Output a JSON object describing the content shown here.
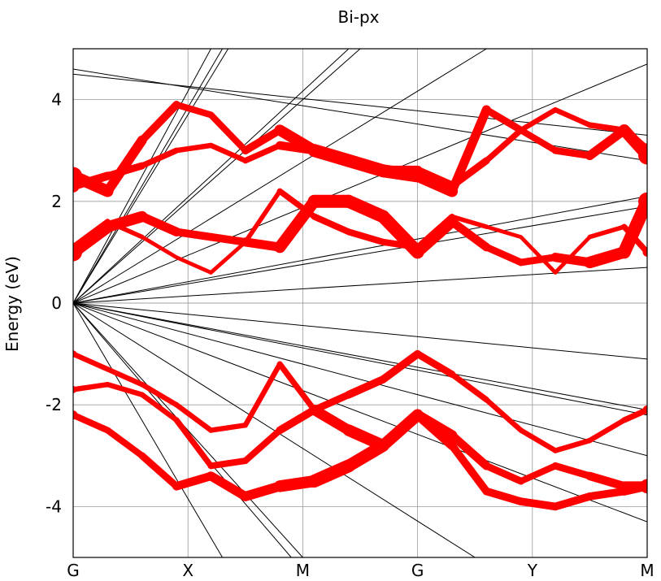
{
  "chart_data": {
    "type": "line",
    "title": "Bi-px",
    "xlabel": "",
    "ylabel": "Energy (eV)",
    "ylim": [
      -5,
      5
    ],
    "grid": true,
    "x_ticks": [
      "G",
      "X",
      "M",
      "G",
      "Y",
      "M"
    ],
    "x_positions": [
      0,
      1,
      2,
      3,
      4,
      5
    ],
    "y_ticks": [
      -4,
      -2,
      0,
      2,
      4
    ],
    "colors": {
      "projected": "#ff0000",
      "band": "#000000"
    },
    "series": [
      {
        "x": [
          0,
          0.3,
          0.6,
          0.9,
          1.2,
          1.5,
          1.8,
          2.1,
          2.4,
          2.7,
          3.0,
          3.3,
          3.6,
          3.9,
          4.2,
          4.5,
          4.8,
          5.0
        ],
        "y": [
          1.0,
          1.5,
          1.7,
          1.4,
          1.3,
          1.2,
          1.1,
          2.0,
          2.0,
          1.7,
          1.0,
          1.6,
          1.1,
          0.8,
          0.9,
          0.8,
          1.0,
          2.0
        ],
        "weight": [
          1,
          0.9,
          0.8,
          0.6,
          0.6,
          0.6,
          0.8,
          1,
          1,
          1,
          1,
          0.7,
          0.6,
          0.5,
          0.6,
          0.8,
          1,
          1
        ]
      },
      {
        "x": [
          0,
          0.3,
          0.6,
          0.9,
          1.2,
          1.5,
          1.8,
          2.1,
          2.4,
          2.7,
          3.0,
          3.3,
          3.6,
          3.9,
          4.2,
          4.5,
          4.8,
          5.0
        ],
        "y": [
          2.5,
          2.2,
          3.2,
          3.9,
          3.7,
          3.0,
          3.4,
          3.0,
          2.8,
          2.6,
          2.5,
          2.2,
          3.8,
          3.4,
          3.0,
          2.9,
          3.4,
          2.9
        ],
        "weight": [
          1,
          0.8,
          0.7,
          0.5,
          0.5,
          0.5,
          0.7,
          1,
          1,
          1,
          1,
          0.8,
          0.6,
          0.5,
          0.5,
          0.6,
          0.8,
          1
        ]
      },
      {
        "x": [
          0,
          0.3,
          0.6,
          0.9,
          1.2,
          1.5,
          1.8,
          2.1,
          2.4,
          2.7,
          3.0,
          3.3,
          3.6,
          3.9,
          4.2,
          4.5,
          4.8,
          5.0
        ],
        "y": [
          2.3,
          2.5,
          2.7,
          3.0,
          3.1,
          2.8,
          3.1,
          3.0,
          2.8,
          2.6,
          2.6,
          2.3,
          2.8,
          3.4,
          3.8,
          3.5,
          3.4,
          3.0
        ],
        "weight": [
          0.7,
          0.6,
          0.5,
          0.4,
          0.4,
          0.4,
          0.5,
          0.8,
          0.8,
          0.8,
          0.8,
          0.6,
          0.5,
          0.4,
          0.4,
          0.4,
          0.5,
          0.8
        ]
      },
      {
        "x": [
          0,
          0.3,
          0.6,
          0.9,
          1.2,
          1.5,
          1.8,
          2.1,
          2.4,
          2.7,
          3.0,
          3.3,
          3.6,
          3.9,
          4.2,
          4.5,
          4.8,
          5.0
        ],
        "y": [
          1.1,
          1.6,
          1.3,
          0.9,
          0.6,
          1.2,
          2.2,
          1.7,
          1.4,
          1.2,
          1.1,
          1.7,
          1.5,
          1.3,
          0.6,
          1.3,
          1.5,
          1.0
        ],
        "weight": [
          0.5,
          0.4,
          0.3,
          0.3,
          0.3,
          0.3,
          0.4,
          0.5,
          0.5,
          0.5,
          0.5,
          0.4,
          0.3,
          0.3,
          0.3,
          0.3,
          0.4,
          0.5
        ]
      },
      {
        "x": [
          0,
          0.3,
          0.6,
          0.9,
          1.2,
          1.5,
          1.8,
          2.1,
          2.4,
          2.7,
          3.0,
          3.3,
          3.6,
          3.9,
          4.2,
          4.5,
          4.8,
          5.0
        ],
        "y": [
          -1.0,
          -1.3,
          -1.6,
          -2.0,
          -2.5,
          -2.4,
          -1.2,
          -2.1,
          -1.8,
          -1.5,
          -1.0,
          -1.4,
          -1.9,
          -2.5,
          -2.9,
          -2.7,
          -2.3,
          -2.1
        ],
        "weight": [
          0.4,
          0.4,
          0.4,
          0.4,
          0.4,
          0.4,
          0.4,
          0.5,
          0.6,
          0.6,
          0.6,
          0.5,
          0.4,
          0.4,
          0.4,
          0.4,
          0.4,
          0.5
        ]
      },
      {
        "x": [
          0,
          0.3,
          0.6,
          0.9,
          1.2,
          1.5,
          1.8,
          2.1,
          2.4,
          2.7,
          3.0,
          3.3,
          3.6,
          3.9,
          4.2,
          4.5,
          4.8,
          5.0
        ],
        "y": [
          -1.7,
          -1.6,
          -1.8,
          -2.3,
          -3.2,
          -3.1,
          -2.5,
          -2.1,
          -2.5,
          -2.8,
          -2.2,
          -2.6,
          -3.2,
          -3.5,
          -3.2,
          -3.4,
          -3.6,
          -3.6
        ],
        "weight": [
          0.4,
          0.4,
          0.4,
          0.4,
          0.5,
          0.5,
          0.5,
          0.7,
          0.9,
          0.9,
          0.9,
          0.7,
          0.6,
          0.5,
          0.5,
          0.6,
          0.7,
          0.8
        ]
      },
      {
        "x": [
          0,
          0.3,
          0.6,
          0.9,
          1.2,
          1.5,
          1.8,
          2.1,
          2.4,
          2.7,
          3.0,
          3.3,
          3.6,
          3.9,
          4.2,
          4.5,
          4.8,
          5.0
        ],
        "y": [
          -2.2,
          -2.5,
          -3.0,
          -3.6,
          -3.4,
          -3.8,
          -3.6,
          -3.5,
          -3.2,
          -2.8,
          -2.2,
          -2.8,
          -3.7,
          -3.9,
          -4.0,
          -3.8,
          -3.7,
          -3.6
        ],
        "weight": [
          0.5,
          0.5,
          0.5,
          0.6,
          0.7,
          0.7,
          0.8,
          1,
          1,
          0.9,
          0.8,
          0.6,
          0.6,
          0.6,
          0.6,
          0.6,
          0.6,
          0.7
        ]
      }
    ]
  }
}
